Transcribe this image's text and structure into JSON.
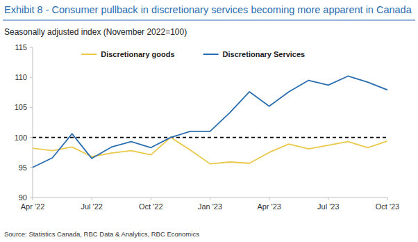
{
  "chart_data": {
    "type": "line",
    "title": "Exhibit 8 - Consumer pullback in discretionary services becoming more apparent in Canada",
    "subtitle": "Seasonally adjusted index (November 2022=100)",
    "source": "Source: Statistics Canada, RBC Data & Analytics, RBC Economics",
    "categories": [
      "Apr '22",
      null,
      null,
      "Jul '22",
      null,
      null,
      "Oct '22",
      null,
      null,
      "Jan '23",
      null,
      null,
      "Apr '23",
      null,
      null,
      "Jul '23",
      null,
      null,
      "Oct '23"
    ],
    "series": [
      {
        "name": "Discretionary goods",
        "color": "#e9c84a",
        "values": [
          98.2,
          97.8,
          98.4,
          96.8,
          97.4,
          97.8,
          97.1,
          100,
          97.9,
          95.6,
          95.9,
          95.7,
          97.5,
          98.9,
          98.1,
          98.7,
          99.3,
          98.3,
          99.4
        ]
      },
      {
        "name": "Discretionary Services",
        "color": "#2a6db0",
        "values": [
          95,
          96.6,
          100.6,
          96.5,
          98.4,
          99.3,
          98.3,
          100,
          101,
          101,
          104.1,
          107.6,
          105.2,
          107.6,
          109.5,
          108.7,
          110.2,
          109.2,
          107.9
        ]
      }
    ],
    "reference_line": 100,
    "ylim": [
      90,
      115
    ],
    "yticks": [
      90,
      95,
      100,
      105,
      110,
      115
    ],
    "grid": false,
    "legend": "top"
  }
}
